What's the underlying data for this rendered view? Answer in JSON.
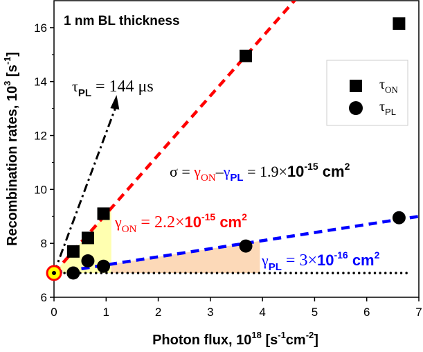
{
  "chart_data": {
    "type": "scatter",
    "title": "1 nm BL thickness",
    "xlabel": "Photon flux, 10",
    "xlabel_exp": "18",
    "xlabel_units": [
      "[s",
      "-1",
      "cm",
      "-2",
      "]"
    ],
    "ylabel": "Recombination rates, 10",
    "ylabel_exp": "3",
    "ylabel_units": [
      "[s",
      "-1",
      "]"
    ],
    "xlim": [
      0,
      7
    ],
    "ylim": [
      6,
      17
    ],
    "xticks": [
      "0",
      "1",
      "2",
      "3",
      "4",
      "5",
      "6",
      "7"
    ],
    "yticks": [
      "6",
      "8",
      "10",
      "12",
      "14",
      "16"
    ],
    "grid": false,
    "legend_position": "top-right",
    "series": [
      {
        "name": "τON",
        "legend_main": "τ",
        "legend_sub": "ON",
        "marker": "square",
        "color": "#000000",
        "x": [
          0.37,
          0.65,
          0.95,
          3.68,
          6.62
        ],
        "y": [
          7.7,
          8.2,
          9.1,
          14.95,
          16.15
        ]
      },
      {
        "name": "τPL",
        "legend_main": "τ",
        "legend_sub": "PL",
        "marker": "circle",
        "color": "#000000",
        "x": [
          0.37,
          0.65,
          0.95,
          3.68,
          6.62
        ],
        "y": [
          6.9,
          7.35,
          7.15,
          7.9,
          8.95
        ]
      }
    ],
    "fits": [
      {
        "color": "#ff0000",
        "style": "dashed",
        "intercept": 6.9,
        "slope": 2.19
      },
      {
        "color": "#0000ff",
        "style": "dashed",
        "intercept": 6.9,
        "slope": 0.3
      }
    ],
    "baseline": {
      "y": 6.9,
      "style": "dotted",
      "color": "#000000"
    },
    "origin_point": {
      "x": 0,
      "y": 6.9,
      "fill": "#ffff00",
      "stroke": "#ff0000"
    },
    "arrow": {
      "from": [
        0,
        6.9
      ],
      "to": [
        1.2,
        13.5
      ],
      "style": "dash-dot"
    },
    "annotations": {
      "tau_pl": {
        "main": "τ",
        "sub": "PL",
        "rest": " = 144 μs"
      },
      "gamma_on": {
        "main": "γ",
        "sub": "ON",
        "rest": " = 2.2×",
        "pow": "10",
        "exp": "-15",
        "unit": " cm",
        "unit_exp": "2",
        "color": "#ff0000"
      },
      "gamma_pl": {
        "main": "γ",
        "sub": "PL",
        "rest": " = 3×",
        "pow": "10",
        "exp": "-16",
        "unit": " cm",
        "unit_exp": "2",
        "color": "#0000ff"
      },
      "sigma": {
        "lead": "σ = ",
        "g1": "γ",
        "s1": "ON",
        "minus": "–",
        "g2": "γ",
        "s2": "PL",
        "rest": " = 1.9×",
        "pow": "10",
        "exp": "-15",
        "unit": " cm",
        "unit_exp": "2"
      }
    },
    "shading": {
      "yellow": "#ffffb0",
      "orange": "#fcd9b8"
    }
  }
}
